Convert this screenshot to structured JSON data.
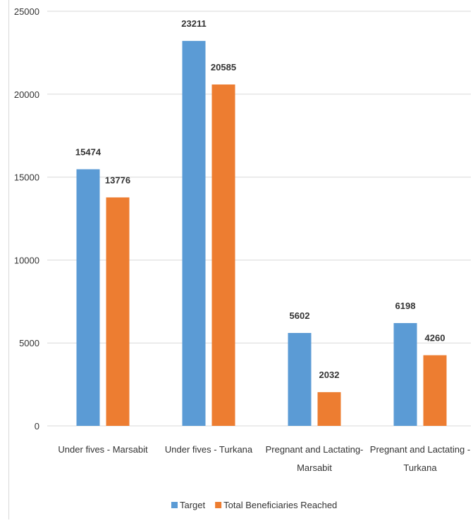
{
  "chart_data": {
    "type": "bar",
    "title": "",
    "xlabel": "",
    "ylabel": "",
    "categories": [
      [
        "Under fives - Marsabit"
      ],
      [
        "Under fives - Turkana"
      ],
      [
        "Pregnant and Lactating-",
        "Marsabit"
      ],
      [
        "Pregnant and Lactating -",
        "Turkana"
      ]
    ],
    "series": [
      {
        "name": "Target",
        "color": "#5b9bd5",
        "values": [
          15474,
          23211,
          5602,
          6198
        ]
      },
      {
        "name": "Total Beneficiaries Reached",
        "color": "#ed7d31",
        "values": [
          13776,
          20585,
          2032,
          4260
        ]
      }
    ],
    "ylim": [
      0,
      25000
    ],
    "yticks": [
      0,
      5000,
      10000,
      15000,
      20000,
      25000
    ],
    "grid": true,
    "legend_position": "bottom"
  }
}
